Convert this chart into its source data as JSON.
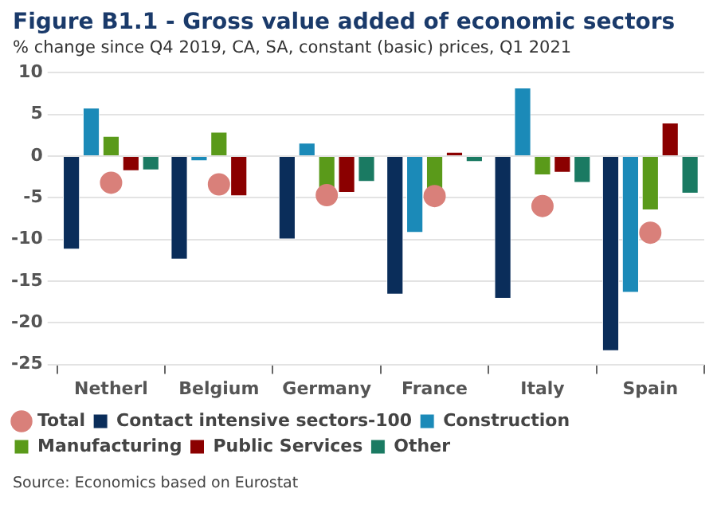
{
  "chart_data": {
    "type": "bar",
    "title": "Figure B1.1 - Gross value added of economic sectors",
    "subtitle": "% change since Q4 2019, CA, SA, constant (basic) prices, Q1 2021",
    "categories": [
      "Netherl",
      "Belgium",
      "Germany",
      "France",
      "Italy",
      "Spain"
    ],
    "series": [
      {
        "name": "Total",
        "type": "scatter",
        "color": "#d9807a",
        "x": [
          "Netherl",
          "Belgium",
          "Germany",
          "France",
          "Italy",
          "Spain"
        ],
        "values": [
          -3.2,
          -3.4,
          -4.7,
          -4.8,
          -6.0,
          -9.2
        ]
      },
      {
        "name": "Contact intensive sectors-100",
        "color": "#0a2d5a",
        "values": [
          -11.2,
          -12.4,
          -10.0,
          -16.6,
          -17.1,
          -23.4
        ]
      },
      {
        "name": "Construction",
        "color": "#1b8ab8",
        "values": [
          5.8,
          -0.6,
          1.6,
          -9.2,
          8.2,
          -16.4
        ]
      },
      {
        "name": "Manufacturing",
        "color": "#5a9a1a",
        "values": [
          2.4,
          2.9,
          -3.9,
          -4.0,
          -2.3,
          -6.5
        ]
      },
      {
        "name": "Public Services",
        "color": "#8b0000",
        "values": [
          -1.8,
          -4.8,
          -4.4,
          0.5,
          -2.0,
          4.0
        ]
      },
      {
        "name": "Other",
        "color": "#1a7a62",
        "values": [
          -1.7,
          0,
          -3.1,
          -0.7,
          -3.2,
          -4.5
        ]
      }
    ],
    "ylim": [
      -25,
      10
    ],
    "yticks": [
      -25,
      -20,
      -15,
      -10,
      -5,
      0,
      5,
      10
    ],
    "grid": "y",
    "legend": "bottom",
    "marker": "circle",
    "annotations": [
      "Source: Economics based on Eurostat"
    ]
  }
}
